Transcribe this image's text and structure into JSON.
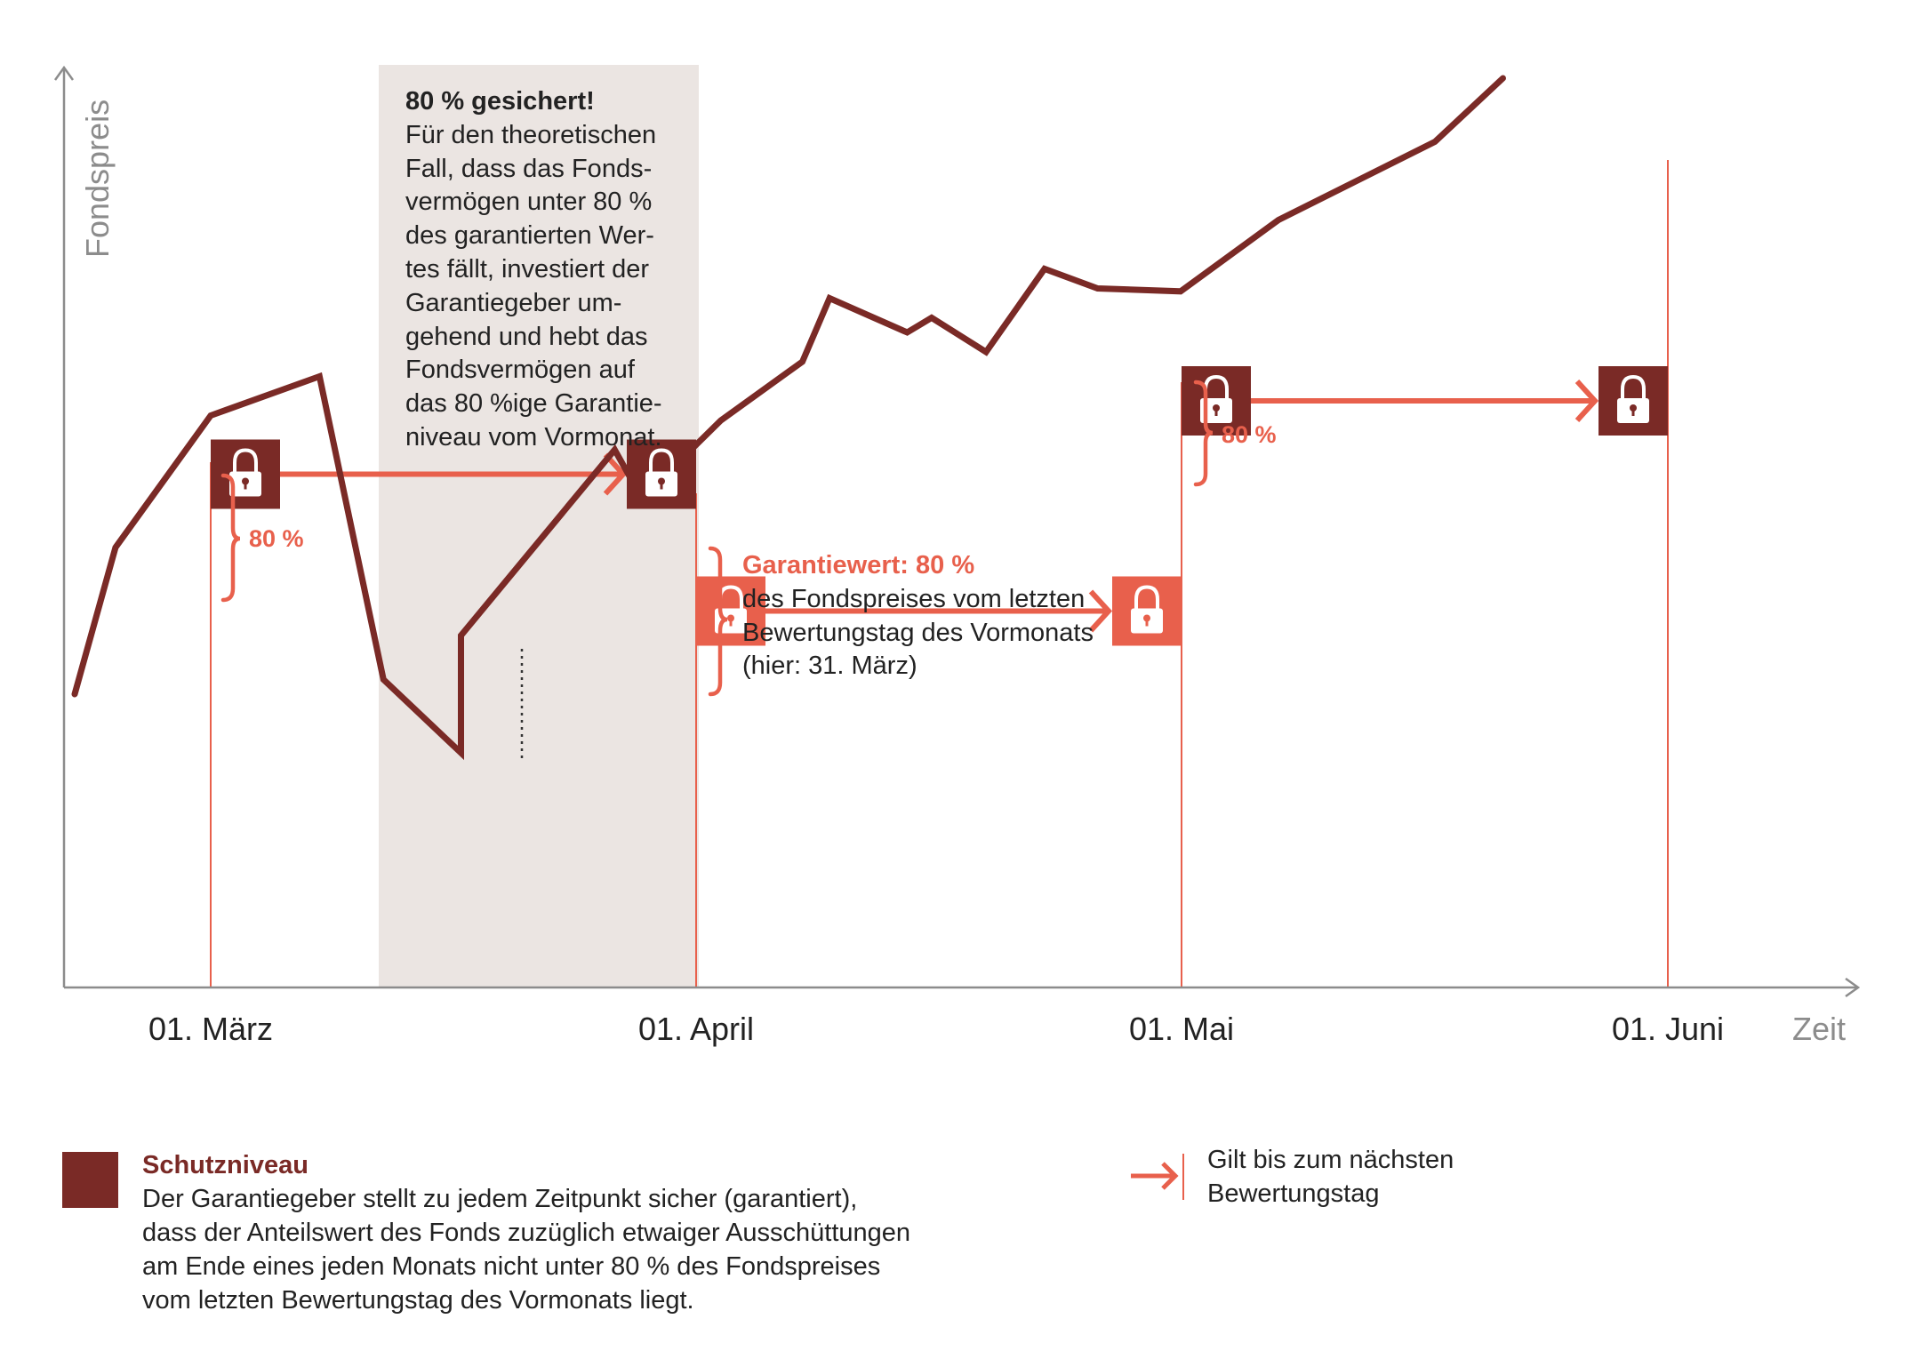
{
  "chart_data": {
    "type": "line",
    "ylabel": "Fondspreis",
    "xlabel": "Zeit",
    "x_ticks": [
      "01. März",
      "01. April",
      "01. Mai",
      "01. Juni"
    ],
    "series": [
      {
        "values": [
          {
            "x": 0.0,
            "y": 300
          },
          {
            "x": 0.3,
            "y": 450
          },
          {
            "x": 1.0,
            "y": 585
          },
          {
            "x": 1.8,
            "y": 625
          },
          {
            "x": 2.27,
            "y": 315
          },
          {
            "x": 2.84,
            "y": 240
          },
          {
            "x": 2.84,
            "y": 360
          },
          {
            "x": 3.97,
            "y": 550
          },
          {
            "x": 4.15,
            "y": 505
          },
          {
            "x": 4.35,
            "y": 525
          },
          {
            "x": 4.75,
            "y": 580
          },
          {
            "x": 5.35,
            "y": 640
          },
          {
            "x": 5.55,
            "y": 705
          },
          {
            "x": 6.12,
            "y": 670
          },
          {
            "x": 6.3,
            "y": 685
          },
          {
            "x": 6.7,
            "y": 650
          },
          {
            "x": 7.13,
            "y": 735
          },
          {
            "x": 7.52,
            "y": 715
          },
          {
            "x": 8.13,
            "y": 712
          },
          {
            "x": 8.85,
            "y": 785
          },
          {
            "x": 10.0,
            "y": 865
          },
          {
            "x": 10.5,
            "y": 930
          }
        ]
      }
    ],
    "protection_levels": [
      {
        "from": "01. März",
        "to": "01. April",
        "value": 525
      },
      {
        "from": "01. April",
        "to": "01. Mai",
        "value": 385
      },
      {
        "from": "01. Mai",
        "to": "01. Juni",
        "value": 600
      }
    ],
    "colors": {
      "line": "#7a2a26",
      "accent": "#e8604c",
      "dark_lock": "#7a2a26",
      "shade": "#ebe5e2",
      "axis": "#8c8c8c"
    },
    "grid": false
  },
  "annotations": {
    "box_title": "80 % gesichert!",
    "box_text": "Für den theoretischen\nFall, dass das Fonds-\nvermögen unter 80 %\ndes garantierten Wer-\ntes fällt, investiert der\nGarantiegeber um-\ngehend und hebt das\nFondsvermögen auf\ndas 80 %ige Garantie-\nniveau vom Vormonat.",
    "pct_march": "80 %",
    "pct_may": "80 %",
    "guarantee_title": "Garantiewert: 80 %",
    "guarantee_text": "des Fondspreises vom letzten\nBewertungstag des Vormonats\n(hier: 31. März)"
  },
  "legend": {
    "protection_title": "Schutzniveau",
    "protection_text": "Der Garantiegeber stellt zu jedem Zeitpunkt sicher (garantiert),\ndass der Anteilswert des Fonds zuzüglich etwaiger Ausschüttungen\nam Ende eines jeden Monats nicht unter 80 % des Fondspreises\nvom letzten Bewertungstag des Vormonats liegt.",
    "arrow_text": "Gilt bis zum nächsten\nBewertungstag"
  }
}
